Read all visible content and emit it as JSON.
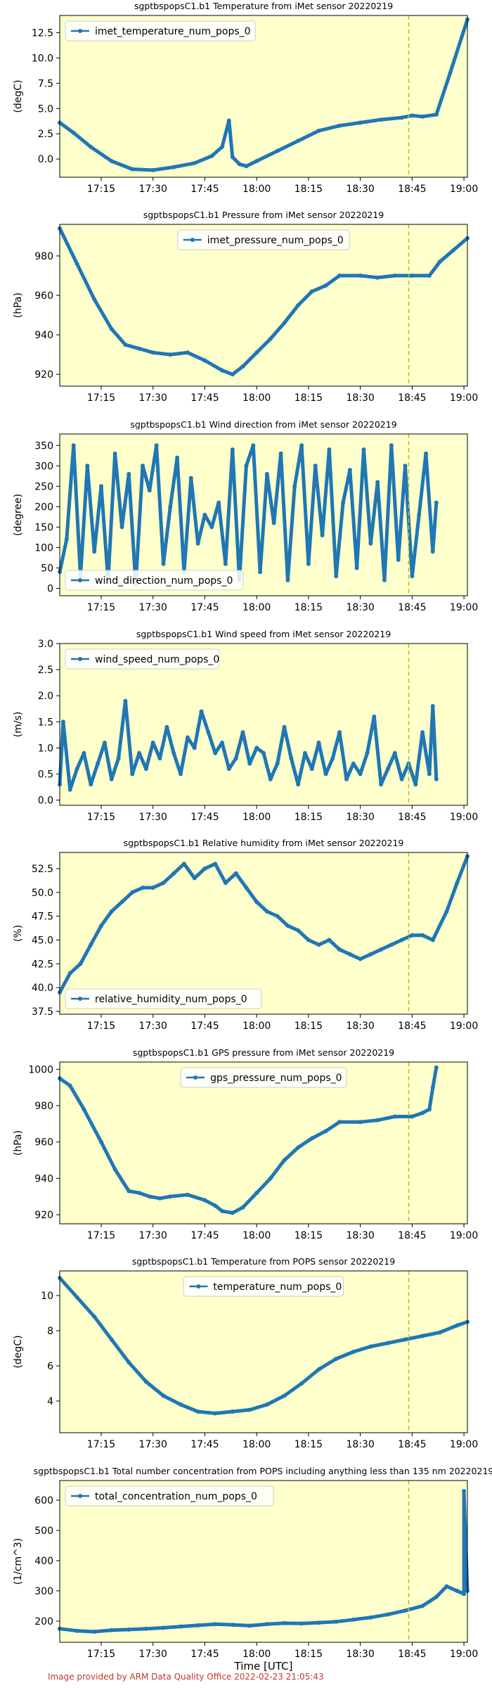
{
  "footer": "Image provided by ARM Data Quality Office 2022-02-23 21:05:43",
  "chart_data": [
    {
      "type": "line",
      "title": "sgptbspopsC1.b1 Temperature from iMet sensor 20220219",
      "ylabel": "(degC)",
      "xlabel": "",
      "legend": "top-left",
      "x_ticks": [
        "17:15",
        "17:30",
        "17:45",
        "18:00",
        "18:15",
        "18:30",
        "18:45",
        "19:00"
      ],
      "y_ticks": [
        "0.0",
        "2.5",
        "5.0",
        "7.5",
        "10.0",
        "12.5"
      ],
      "x_range": [
        "17:03",
        "19:01"
      ],
      "ylim": [
        -1.8,
        14.2
      ],
      "marker_line": "18:44",
      "series": [
        {
          "name": "imet_temperature_num_pops_0",
          "x": [
            "17:03",
            "17:07",
            "17:12",
            "17:18",
            "17:24",
            "17:30",
            "17:36",
            "17:42",
            "17:47",
            "17:50",
            "17:52",
            "17:53",
            "17:55",
            "17:57",
            "18:00",
            "18:06",
            "18:12",
            "18:18",
            "18:24",
            "18:30",
            "18:36",
            "18:42",
            "18:45",
            "18:48",
            "18:52",
            "18:56",
            "19:01"
          ],
          "values": [
            3.6,
            2.6,
            1.2,
            -0.2,
            -1.0,
            -1.1,
            -0.8,
            -0.4,
            0.3,
            1.2,
            3.8,
            0.2,
            -0.5,
            -0.7,
            -0.2,
            0.8,
            1.8,
            2.8,
            3.3,
            3.6,
            3.9,
            4.1,
            4.3,
            4.2,
            4.4,
            8.5,
            13.8
          ]
        }
      ]
    },
    {
      "type": "line",
      "title": "sgptbspopsC1.b1 Pressure from iMet sensor 20220219",
      "ylabel": "(hPa)",
      "xlabel": "",
      "legend": "top-center",
      "x_ticks": [
        "17:15",
        "17:30",
        "17:45",
        "18:00",
        "18:15",
        "18:30",
        "18:45",
        "19:00"
      ],
      "y_ticks": [
        "920",
        "940",
        "960",
        "980"
      ],
      "x_range": [
        "17:03",
        "19:01"
      ],
      "ylim": [
        914,
        996
      ],
      "marker_line": "18:44",
      "series": [
        {
          "name": "imet_pressure_num_pops_0",
          "x": [
            "17:03",
            "17:08",
            "17:13",
            "17:18",
            "17:22",
            "17:26",
            "17:30",
            "17:35",
            "17:40",
            "17:45",
            "17:50",
            "17:53",
            "17:56",
            "18:00",
            "18:04",
            "18:08",
            "18:12",
            "18:16",
            "18:20",
            "18:24",
            "18:30",
            "18:35",
            "18:40",
            "18:45",
            "18:50",
            "18:53",
            "18:57",
            "19:01"
          ],
          "values": [
            994,
            976,
            958,
            943,
            935,
            933,
            931,
            930,
            931,
            927,
            922,
            920,
            924,
            931,
            938,
            946,
            955,
            962,
            965,
            970,
            970,
            969,
            970,
            970,
            970,
            977,
            983,
            989
          ]
        }
      ]
    },
    {
      "type": "line",
      "title": "sgptbspopsC1.b1 Wind direction from iMet sensor 20220219",
      "ylabel": "(degree)",
      "xlabel": "",
      "legend": "bottom-left",
      "x_ticks": [
        "17:15",
        "17:30",
        "17:45",
        "18:00",
        "18:15",
        "18:30",
        "18:45",
        "19:00"
      ],
      "y_ticks": [
        "0",
        "50",
        "100",
        "150",
        "200",
        "250",
        "300",
        "350"
      ],
      "x_range": [
        "17:03",
        "19:01"
      ],
      "ylim": [
        -18,
        378
      ],
      "marker_line": "18:44",
      "series": [
        {
          "name": "wind_direction_num_pops_0",
          "x": [
            "17:03",
            "17:05",
            "17:07",
            "17:09",
            "17:11",
            "17:13",
            "17:15",
            "17:17",
            "17:19",
            "17:21",
            "17:23",
            "17:25",
            "17:27",
            "17:29",
            "17:31",
            "17:33",
            "17:35",
            "17:37",
            "17:39",
            "17:41",
            "17:43",
            "17:45",
            "17:47",
            "17:49",
            "17:51",
            "17:53",
            "17:55",
            "17:57",
            "17:59",
            "18:01",
            "18:03",
            "18:05",
            "18:07",
            "18:09",
            "18:11",
            "18:13",
            "18:15",
            "18:17",
            "18:19",
            "18:21",
            "18:23",
            "18:25",
            "18:27",
            "18:29",
            "18:31",
            "18:33",
            "18:35",
            "18:37",
            "18:39",
            "18:41",
            "18:43",
            "18:45",
            "18:47",
            "18:49",
            "18:51",
            "18:52"
          ],
          "values": [
            40,
            120,
            350,
            30,
            300,
            90,
            250,
            20,
            330,
            150,
            280,
            10,
            300,
            240,
            350,
            60,
            200,
            320,
            40,
            270,
            110,
            180,
            150,
            210,
            60,
            340,
            20,
            300,
            350,
            40,
            280,
            160,
            330,
            20,
            250,
            350,
            60,
            300,
            130,
            340,
            30,
            210,
            290,
            50,
            340,
            110,
            260,
            20,
            350,
            70,
            300,
            30,
            180,
            330,
            90,
            210
          ]
        }
      ]
    },
    {
      "type": "line",
      "title": "sgptbspopsC1.b1 Wind speed from iMet sensor 20220219",
      "ylabel": "(m/s)",
      "xlabel": "",
      "legend": "top-left",
      "x_ticks": [
        "17:15",
        "17:30",
        "17:45",
        "18:00",
        "18:15",
        "18:30",
        "18:45",
        "19:00"
      ],
      "y_ticks": [
        "0.0",
        "0.5",
        "1.0",
        "1.5",
        "2.0",
        "2.5",
        "3.0"
      ],
      "x_range": [
        "17:03",
        "19:01"
      ],
      "ylim": [
        -0.1,
        3.0
      ],
      "marker_line": "18:44",
      "series": [
        {
          "name": "wind_speed_num_pops_0",
          "x": [
            "17:03",
            "17:04",
            "17:06",
            "17:08",
            "17:10",
            "17:12",
            "17:14",
            "17:16",
            "17:18",
            "17:20",
            "17:22",
            "17:24",
            "17:26",
            "17:28",
            "17:30",
            "17:32",
            "17:34",
            "17:36",
            "17:38",
            "17:40",
            "17:42",
            "17:44",
            "17:46",
            "17:48",
            "17:50",
            "17:52",
            "17:54",
            "17:56",
            "17:58",
            "18:00",
            "18:02",
            "18:04",
            "18:06",
            "18:08",
            "18:10",
            "18:12",
            "18:14",
            "18:16",
            "18:18",
            "18:20",
            "18:22",
            "18:24",
            "18:26",
            "18:28",
            "18:30",
            "18:32",
            "18:34",
            "18:36",
            "18:38",
            "18:40",
            "18:42",
            "18:44",
            "18:46",
            "18:48",
            "18:50",
            "18:51",
            "18:52"
          ],
          "values": [
            0.3,
            1.5,
            0.2,
            0.6,
            0.9,
            0.3,
            0.7,
            1.1,
            0.4,
            0.8,
            1.9,
            0.5,
            0.9,
            0.6,
            1.1,
            0.8,
            1.4,
            0.9,
            0.5,
            1.2,
            1.0,
            1.7,
            1.3,
            0.9,
            1.1,
            0.6,
            0.8,
            1.3,
            0.7,
            1.0,
            0.9,
            0.4,
            0.7,
            1.4,
            0.8,
            0.3,
            0.9,
            0.6,
            1.1,
            0.5,
            0.8,
            1.3,
            0.4,
            0.7,
            0.5,
            0.9,
            1.6,
            0.3,
            0.6,
            0.9,
            0.4,
            0.7,
            0.3,
            1.3,
            0.5,
            1.8,
            0.4
          ]
        }
      ]
    },
    {
      "type": "line",
      "title": "sgptbspopsC1.b1 Relative humidity from iMet sensor 20220219",
      "ylabel": "(%)",
      "xlabel": "",
      "legend": "bottom-left",
      "x_ticks": [
        "17:15",
        "17:30",
        "17:45",
        "18:00",
        "18:15",
        "18:30",
        "18:45",
        "19:00"
      ],
      "y_ticks": [
        "37.5",
        "40.0",
        "42.5",
        "45.0",
        "47.5",
        "50.0",
        "52.5"
      ],
      "x_range": [
        "17:03",
        "19:01"
      ],
      "ylim": [
        37.2,
        54.2
      ],
      "marker_line": "18:44",
      "series": [
        {
          "name": "relative_humidity_num_pops_0",
          "x": [
            "17:03",
            "17:06",
            "17:09",
            "17:12",
            "17:15",
            "17:18",
            "17:21",
            "17:24",
            "17:27",
            "17:30",
            "17:33",
            "17:36",
            "17:39",
            "17:42",
            "17:45",
            "17:48",
            "17:51",
            "17:54",
            "17:57",
            "18:00",
            "18:03",
            "18:06",
            "18:09",
            "18:12",
            "18:15",
            "18:18",
            "18:21",
            "18:24",
            "18:27",
            "18:30",
            "18:33",
            "18:36",
            "18:39",
            "18:42",
            "18:45",
            "18:48",
            "18:51",
            "18:55",
            "18:58",
            "19:01"
          ],
          "values": [
            39.5,
            41.5,
            42.5,
            44.5,
            46.5,
            48.0,
            49.0,
            50.0,
            50.5,
            50.5,
            51.0,
            52.0,
            53.0,
            51.5,
            52.5,
            53.0,
            51.0,
            52.0,
            50.5,
            49.0,
            48.0,
            47.5,
            46.5,
            46.0,
            45.0,
            44.5,
            45.0,
            44.0,
            43.5,
            43.0,
            43.5,
            44.0,
            44.5,
            45.0,
            45.5,
            45.5,
            45.0,
            48.0,
            51.0,
            53.8
          ]
        }
      ]
    },
    {
      "type": "line",
      "title": "sgptbspopsC1.b1 GPS pressure from iMet sensor 20220219",
      "ylabel": "(hPa)",
      "xlabel": "",
      "legend": "top-center",
      "x_ticks": [
        "17:15",
        "17:30",
        "17:45",
        "18:00",
        "18:15",
        "18:30",
        "18:45",
        "19:00"
      ],
      "y_ticks": [
        "920",
        "940",
        "960",
        "980",
        "1000"
      ],
      "x_range": [
        "17:03",
        "19:01"
      ],
      "ylim": [
        915,
        1004
      ],
      "marker_line": "18:44",
      "series": [
        {
          "name": "gps_pressure_num_pops_0",
          "x": [
            "17:03",
            "17:06",
            "17:10",
            "17:15",
            "17:19",
            "17:23",
            "17:26",
            "17:29",
            "17:32",
            "17:35",
            "17:40",
            "17:45",
            "17:48",
            "17:50",
            "17:53",
            "17:56",
            "18:00",
            "18:04",
            "18:08",
            "18:12",
            "18:16",
            "18:20",
            "18:24",
            "18:30",
            "18:35",
            "18:40",
            "18:45",
            "18:48",
            "18:50",
            "18:51",
            "18:52"
          ],
          "values": [
            995,
            991,
            978,
            960,
            945,
            933,
            932,
            930,
            929,
            930,
            931,
            928,
            925,
            922,
            921,
            924,
            932,
            940,
            950,
            957,
            962,
            966,
            971,
            971,
            972,
            974,
            974,
            976,
            978,
            990,
            1001
          ]
        }
      ]
    },
    {
      "type": "line",
      "title": "sgptbspopsC1.b1 Temperature from POPS sensor 20220219",
      "ylabel": "(degC)",
      "xlabel": "",
      "legend": "top-center",
      "x_ticks": [
        "17:15",
        "17:30",
        "17:45",
        "18:00",
        "18:15",
        "18:30",
        "18:45",
        "19:00"
      ],
      "y_ticks": [
        "4",
        "6",
        "8",
        "10"
      ],
      "x_range": [
        "17:03",
        "19:01"
      ],
      "ylim": [
        2.2,
        11.4
      ],
      "marker_line": "18:44",
      "series": [
        {
          "name": "temperature_num_pops_0",
          "x": [
            "17:03",
            "17:08",
            "17:13",
            "17:18",
            "17:23",
            "17:28",
            "17:33",
            "17:38",
            "17:43",
            "17:48",
            "17:53",
            "17:58",
            "18:03",
            "18:08",
            "18:13",
            "18:18",
            "18:23",
            "18:28",
            "18:33",
            "18:38",
            "18:43",
            "18:48",
            "18:53",
            "18:58",
            "19:01"
          ],
          "values": [
            11.0,
            9.9,
            8.8,
            7.5,
            6.2,
            5.1,
            4.3,
            3.8,
            3.4,
            3.3,
            3.4,
            3.5,
            3.8,
            4.3,
            5.0,
            5.8,
            6.4,
            6.8,
            7.1,
            7.3,
            7.5,
            7.7,
            7.9,
            8.3,
            8.5
          ]
        }
      ]
    },
    {
      "type": "line",
      "title": "sgptbspopsC1.b1 Total number concentration from POPS including anything less than 135 nm 20220219",
      "ylabel": "(1/cm^3)",
      "xlabel": "Time [UTC]",
      "legend": "top-left",
      "x_ticks": [
        "17:15",
        "17:30",
        "17:45",
        "18:00",
        "18:15",
        "18:30",
        "18:45",
        "19:00"
      ],
      "y_ticks": [
        "200",
        "300",
        "400",
        "500",
        "600"
      ],
      "x_range": [
        "17:03",
        "19:01"
      ],
      "ylim": [
        130,
        665
      ],
      "marker_line": "18:44",
      "series": [
        {
          "name": "total_concentration_num_pops_0",
          "x": [
            "17:03",
            "17:08",
            "17:13",
            "17:18",
            "17:23",
            "17:28",
            "17:33",
            "17:38",
            "17:43",
            "17:48",
            "17:53",
            "17:58",
            "18:03",
            "18:08",
            "18:13",
            "18:18",
            "18:23",
            "18:28",
            "18:33",
            "18:38",
            "18:43",
            "18:48",
            "18:52",
            "18:55",
            "18:58",
            "19:00",
            "19:00",
            "19:01"
          ],
          "values": [
            175,
            168,
            165,
            170,
            172,
            175,
            178,
            182,
            186,
            190,
            188,
            185,
            190,
            193,
            192,
            195,
            198,
            205,
            212,
            222,
            235,
            250,
            280,
            315,
            300,
            290,
            630,
            300
          ]
        }
      ]
    }
  ]
}
